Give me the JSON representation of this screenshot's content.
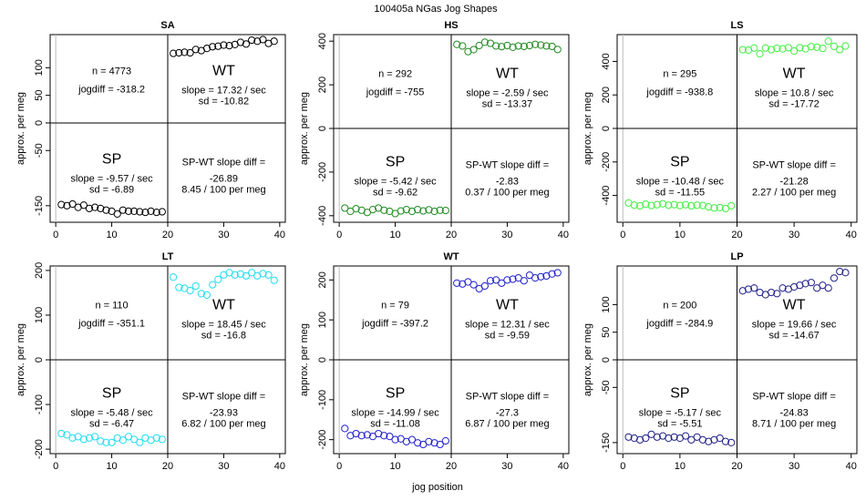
{
  "title": "100405a    NGas Jog Shapes",
  "xlabel": "jog position",
  "ylabel": "approx. per meg",
  "chart_data": [
    {
      "type": "scatter",
      "title": "SA",
      "color": "#000000",
      "xlim": [
        -1,
        41
      ],
      "ylim": [
        -180,
        160
      ],
      "xticks": [
        0,
        10,
        20,
        30,
        40
      ],
      "yticks": [
        -150,
        -50,
        0,
        50,
        100
      ],
      "x": [
        1,
        2,
        3,
        4,
        5,
        6,
        7,
        8,
        9,
        10,
        11,
        12,
        13,
        14,
        15,
        16,
        17,
        18,
        19,
        21,
        22,
        23,
        24,
        25,
        26,
        27,
        28,
        29,
        30,
        31,
        32,
        33,
        34,
        35,
        36,
        37,
        38,
        39
      ],
      "y": [
        -148,
        -150,
        -147,
        -153,
        -149,
        -155,
        -153,
        -155,
        -158,
        -160,
        -165,
        -158,
        -160,
        -160,
        -161,
        -162,
        -160,
        -162,
        -161,
        126,
        127,
        128,
        127,
        133,
        131,
        135,
        138,
        139,
        141,
        140,
        142,
        146,
        143,
        150,
        148,
        151,
        144,
        148
      ],
      "labels": {
        "n": "n = 4773",
        "jogdiff": "jogdiff = -318.2",
        "wt": "WT",
        "wt_slope": "slope = 17.32 / sec",
        "wt_sd": "sd = -10.82",
        "sp": "SP",
        "sp_slope": "slope = -9.57 / sec",
        "sp_sd": "sd = -6.89",
        "diff_title": "SP-WT slope diff =",
        "diff_value": "-26.89",
        "diff_rate": "8.45 / 100 per meg"
      }
    },
    {
      "type": "scatter",
      "title": "HS",
      "color": "#228B22",
      "xlim": [
        -1,
        41
      ],
      "ylim": [
        -430,
        430
      ],
      "xticks": [
        0,
        10,
        20,
        30,
        40
      ],
      "yticks": [
        -400,
        -200,
        0,
        200,
        400
      ],
      "x": [
        1,
        2,
        3,
        4,
        5,
        6,
        7,
        8,
        9,
        10,
        11,
        12,
        13,
        14,
        15,
        16,
        17,
        18,
        19,
        21,
        22,
        23,
        24,
        25,
        26,
        27,
        28,
        29,
        30,
        31,
        32,
        33,
        34,
        35,
        36,
        37,
        38,
        39
      ],
      "y": [
        -365,
        -380,
        -368,
        -375,
        -385,
        -372,
        -365,
        -375,
        -380,
        -390,
        -378,
        -372,
        -380,
        -372,
        -378,
        -373,
        -380,
        -375,
        -376,
        385,
        378,
        352,
        361,
        380,
        395,
        390,
        378,
        375,
        380,
        372,
        378,
        376,
        380,
        385,
        382,
        378,
        376,
        362
      ],
      "labels": {
        "n": "n = 292",
        "jogdiff": "jogdiff = -755",
        "wt": "WT",
        "wt_slope": "slope = -2.59 / sec",
        "wt_sd": "sd = -13.37",
        "sp": "SP",
        "sp_slope": "slope = -5.42 / sec",
        "sp_sd": "sd = -9.62",
        "diff_title": "SP-WT slope diff =",
        "diff_value": "-2.83",
        "diff_rate": "0.37 / 100 per meg"
      }
    },
    {
      "type": "scatter",
      "title": "LS",
      "color": "#44EE44",
      "xlim": [
        -1,
        41
      ],
      "ylim": [
        -560,
        560
      ],
      "xticks": [
        0,
        10,
        20,
        30,
        40
      ],
      "yticks": [
        -400,
        -200,
        0,
        200,
        400
      ],
      "x": [
        1,
        2,
        3,
        4,
        5,
        6,
        7,
        8,
        9,
        10,
        11,
        12,
        13,
        14,
        15,
        16,
        17,
        18,
        19,
        21,
        22,
        23,
        24,
        25,
        26,
        27,
        28,
        29,
        30,
        31,
        32,
        33,
        34,
        35,
        36,
        37,
        38,
        39
      ],
      "y": [
        -445,
        -458,
        -462,
        -452,
        -460,
        -455,
        -450,
        -458,
        -455,
        -460,
        -455,
        -462,
        -458,
        -460,
        -468,
        -475,
        -472,
        -478,
        -462,
        470,
        468,
        480,
        445,
        480,
        470,
        478,
        475,
        482,
        462,
        482,
        475,
        488,
        485,
        478,
        520,
        490,
        470,
        492
      ],
      "labels": {
        "n": "n = 295",
        "jogdiff": "jogdiff = -938.8",
        "wt": "WT",
        "wt_slope": "slope = 10.8 / sec",
        "wt_sd": "sd = -17.72",
        "sp": "SP",
        "sp_slope": "slope = -10.48 / sec",
        "sp_sd": "sd = -11.55",
        "diff_title": "SP-WT slope diff =",
        "diff_value": "-21.28",
        "diff_rate": "2.27 / 100 per meg"
      }
    },
    {
      "type": "scatter",
      "title": "LT",
      "color": "#22DDEE",
      "xlim": [
        -1,
        41
      ],
      "ylim": [
        -210,
        210
      ],
      "xticks": [
        0,
        10,
        20,
        30,
        40
      ],
      "yticks": [
        -200,
        -100,
        0,
        100,
        200
      ],
      "x": [
        1,
        2,
        3,
        4,
        5,
        6,
        7,
        8,
        9,
        10,
        11,
        12,
        13,
        14,
        15,
        16,
        17,
        18,
        19,
        21,
        22,
        23,
        24,
        25,
        26,
        27,
        28,
        29,
        30,
        31,
        32,
        33,
        34,
        35,
        36,
        37,
        38,
        39
      ],
      "y": [
        -165,
        -168,
        -175,
        -172,
        -178,
        -175,
        -172,
        -182,
        -185,
        -185,
        -175,
        -180,
        -172,
        -178,
        -185,
        -175,
        -180,
        -175,
        -178,
        185,
        162,
        160,
        155,
        165,
        148,
        145,
        168,
        180,
        190,
        195,
        190,
        192,
        188,
        195,
        188,
        193,
        190,
        178
      ],
      "labels": {
        "n": "n = 110",
        "jogdiff": "jogdiff = -351.1",
        "wt": "WT",
        "wt_slope": "slope = 18.45 / sec",
        "wt_sd": "sd = -16.8",
        "sp": "SP",
        "sp_slope": "slope = -5.48 / sec",
        "sp_sd": "sd = -6.47",
        "diff_title": "SP-WT slope diff =",
        "diff_value": "-23.93",
        "diff_rate": "6.82 / 100 per meg"
      }
    },
    {
      "type": "scatter",
      "title": "WT",
      "color": "#2222CC",
      "xlim": [
        -1,
        41
      ],
      "ylim": [
        -235,
        235
      ],
      "xticks": [
        0,
        10,
        20,
        30,
        40
      ],
      "yticks": [
        -200,
        -100,
        0,
        100,
        200
      ],
      "x": [
        1,
        2,
        3,
        4,
        5,
        6,
        7,
        8,
        9,
        10,
        11,
        12,
        13,
        14,
        15,
        16,
        17,
        18,
        19,
        21,
        22,
        23,
        24,
        25,
        26,
        27,
        28,
        29,
        30,
        31,
        32,
        33,
        34,
        35,
        36,
        37,
        38,
        39
      ],
      "y": [
        -172,
        -190,
        -185,
        -190,
        -188,
        -192,
        -185,
        -190,
        -192,
        -200,
        -198,
        -205,
        -200,
        -208,
        -212,
        -205,
        -208,
        -212,
        -203,
        192,
        190,
        195,
        188,
        178,
        185,
        198,
        200,
        192,
        200,
        202,
        205,
        198,
        212,
        205,
        208,
        210,
        215,
        218
      ],
      "labels": {
        "n": "n = 79",
        "jogdiff": "jogdiff = -397.2",
        "wt": "WT",
        "wt_slope": "slope = 12.31 / sec",
        "wt_sd": "sd = -9.59",
        "sp": "SP",
        "sp_slope": "slope = -14.99 / sec",
        "sp_sd": "sd = -11.08",
        "diff_title": "SP-WT slope diff =",
        "diff_value": "-27.3",
        "diff_rate": "6.87 / 100 per meg"
      }
    },
    {
      "type": "scatter",
      "title": "LP",
      "color": "#222288",
      "xlim": [
        -1,
        41
      ],
      "ylim": [
        -170,
        170
      ],
      "xticks": [
        0,
        10,
        20,
        30,
        40
      ],
      "yticks": [
        -150,
        -50,
        0,
        50,
        100
      ],
      "x": [
        1,
        2,
        3,
        4,
        5,
        6,
        7,
        8,
        9,
        10,
        11,
        12,
        13,
        14,
        15,
        16,
        17,
        18,
        19,
        21,
        22,
        23,
        24,
        25,
        26,
        27,
        28,
        29,
        30,
        31,
        32,
        33,
        34,
        35,
        36,
        37,
        38,
        39
      ],
      "y": [
        -140,
        -142,
        -145,
        -142,
        -135,
        -140,
        -138,
        -142,
        -140,
        -142,
        -138,
        -145,
        -140,
        -145,
        -148,
        -145,
        -142,
        -148,
        -150,
        125,
        128,
        130,
        122,
        118,
        122,
        120,
        130,
        128,
        132,
        135,
        138,
        140,
        130,
        135,
        130,
        148,
        160,
        158
      ],
      "labels": {
        "n": "n = 200",
        "jogdiff": "jogdiff = -284.9",
        "wt": "WT",
        "wt_slope": "slope = 19.66 / sec",
        "wt_sd": "sd = -14.67",
        "sp": "SP",
        "sp_slope": "slope = -5.17 / sec",
        "sp_sd": "sd = -5.51",
        "diff_title": "SP-WT slope diff =",
        "diff_value": "-24.83",
        "diff_rate": "8.71 / 100 per meg"
      }
    }
  ]
}
